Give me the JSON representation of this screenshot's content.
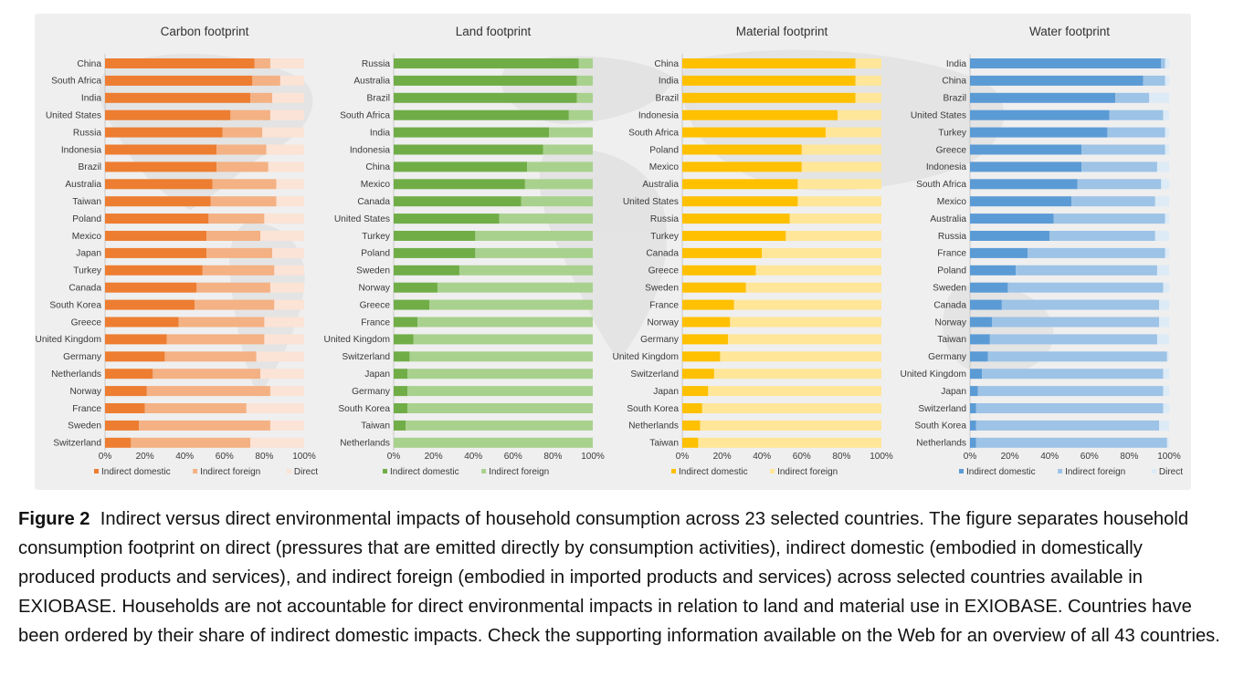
{
  "caption": {
    "label": "Figure 2",
    "text": "Indirect versus direct environmental impacts of household consumption across 23 selected countries. The figure separates household consumption footprint on direct (pressures that are emitted directly by consumption activities), indirect domestic (embodied in domestically produced products and services), and indirect foreign (embodied in imported products and services) across selected countries available in EXIOBASE. Households are not accountable for direct environmental impacts in relation to land and material use in EXIOBASE. Countries have been ordered by their share of indirect domestic impacts. Check the supporting information available on the Web for an overview of all 43 countries."
  },
  "chart_data": [
    {
      "type": "bar",
      "orientation": "horizontal",
      "stacked": "percent",
      "title": "Carbon footprint",
      "categories": [
        "China",
        "South Africa",
        "India",
        "United States",
        "Russia",
        "Indonesia",
        "Brazil",
        "Australia",
        "Taiwan",
        "Poland",
        "Mexico",
        "Japan",
        "Turkey",
        "Canada",
        "South Korea",
        "Greece",
        "United Kingdom",
        "Germany",
        "Netherlands",
        "Norway",
        "France",
        "Sweden",
        "Switzerland"
      ],
      "series": [
        {
          "name": "Indirect domestic",
          "color": "#ed7d31",
          "values": [
            75,
            74,
            73,
            63,
            59,
            56,
            56,
            54,
            53,
            52,
            51,
            51,
            49,
            46,
            45,
            37,
            31,
            30,
            24,
            21,
            20,
            17,
            13
          ]
        },
        {
          "name": "Indirect foreign",
          "color": "#f4b183",
          "values": [
            8,
            14,
            11,
            20,
            20,
            25,
            26,
            32,
            33,
            28,
            27,
            33,
            36,
            37,
            40,
            43,
            49,
            46,
            54,
            62,
            51,
            66,
            60
          ]
        },
        {
          "name": "Direct",
          "color": "#fbe3d6",
          "values": [
            17,
            12,
            16,
            17,
            21,
            19,
            18,
            14,
            14,
            20,
            22,
            16,
            15,
            17,
            15,
            20,
            20,
            24,
            22,
            17,
            29,
            17,
            27
          ]
        }
      ],
      "xlim": [
        0,
        100
      ],
      "xticks": [
        "0%",
        "20%",
        "40%",
        "60%",
        "80%",
        "100%"
      ],
      "legend": "bottom"
    },
    {
      "type": "bar",
      "orientation": "horizontal",
      "stacked": "percent",
      "title": "Land footprint",
      "categories": [
        "Russia",
        "Australia",
        "Brazil",
        "South Africa",
        "India",
        "Indonesia",
        "China",
        "Mexico",
        "Canada",
        "United States",
        "Turkey",
        "Poland",
        "Sweden",
        "Norway",
        "Greece",
        "France",
        "United Kingdom",
        "Switzerland",
        "Japan",
        "Germany",
        "South Korea",
        "Taiwan",
        "Netherlands"
      ],
      "series": [
        {
          "name": "Indirect domestic",
          "color": "#70ad47",
          "values": [
            93,
            92,
            92,
            88,
            78,
            75,
            67,
            66,
            64,
            53,
            41,
            41,
            33,
            22,
            18,
            12,
            10,
            8,
            7,
            7,
            7,
            6,
            0
          ]
        },
        {
          "name": "Indirect foreign",
          "color": "#a9d18e",
          "values": [
            7,
            8,
            8,
            12,
            22,
            25,
            33,
            34,
            36,
            47,
            59,
            59,
            67,
            78,
            82,
            88,
            90,
            92,
            93,
            93,
            93,
            94,
            100
          ]
        }
      ],
      "xlim": [
        0,
        100
      ],
      "xticks": [
        "0%",
        "20%",
        "40%",
        "60%",
        "80%",
        "100%"
      ],
      "legend": "bottom"
    },
    {
      "type": "bar",
      "orientation": "horizontal",
      "stacked": "percent",
      "title": "Material footprint",
      "categories": [
        "China",
        "India",
        "Brazil",
        "Indonesia",
        "South Africa",
        "Poland",
        "Mexico",
        "Australia",
        "United States",
        "Russia",
        "Turkey",
        "Canada",
        "Greece",
        "Sweden",
        "France",
        "Norway",
        "Germany",
        "United Kingdom",
        "Switzerland",
        "Japan",
        "South Korea",
        "Netherlands",
        "Taiwan"
      ],
      "series": [
        {
          "name": "Indirect domestic",
          "color": "#ffc000",
          "values": [
            87,
            87,
            87,
            78,
            72,
            60,
            60,
            58,
            58,
            54,
            52,
            40,
            37,
            32,
            26,
            24,
            23,
            19,
            16,
            13,
            10,
            9,
            8
          ]
        },
        {
          "name": "Indirect foreign",
          "color": "#ffe699",
          "values": [
            13,
            13,
            13,
            22,
            28,
            40,
            40,
            42,
            42,
            46,
            48,
            60,
            63,
            68,
            74,
            76,
            77,
            81,
            84,
            87,
            90,
            91,
            92
          ]
        }
      ],
      "xlim": [
        0,
        100
      ],
      "xticks": [
        "0%",
        "20%",
        "40%",
        "60%",
        "80%",
        "100%"
      ],
      "legend": "bottom"
    },
    {
      "type": "bar",
      "orientation": "horizontal",
      "stacked": "percent",
      "title": "Water footprint",
      "categories": [
        "India",
        "China",
        "Brazil",
        "United States",
        "Turkey",
        "Greece",
        "Indonesia",
        "South Africa",
        "Mexico",
        "Australia",
        "Russia",
        "France",
        "Poland",
        "Sweden",
        "Canada",
        "Norway",
        "Taiwan",
        "Germany",
        "United Kingdom",
        "Japan",
        "Switzerland",
        "South Korea",
        "Netherlands"
      ],
      "series": [
        {
          "name": "Indirect domestic",
          "color": "#5b9bd5",
          "values": [
            96,
            87,
            73,
            70,
            69,
            56,
            56,
            54,
            51,
            42,
            40,
            29,
            23,
            19,
            16,
            11,
            10,
            9,
            6,
            4,
            3,
            3,
            3
          ]
        },
        {
          "name": "Indirect foreign",
          "color": "#9dc3e6",
          "values": [
            2,
            11,
            17,
            27,
            29,
            42,
            38,
            42,
            42,
            56,
            53,
            69,
            71,
            78,
            79,
            84,
            84,
            90,
            91,
            93,
            94,
            92,
            96
          ]
        },
        {
          "name": "Direct",
          "color": "#ddebf7",
          "values": [
            2,
            2,
            10,
            3,
            2,
            2,
            6,
            4,
            7,
            2,
            7,
            2,
            6,
            3,
            5,
            5,
            6,
            1,
            3,
            3,
            3,
            5,
            1
          ]
        }
      ],
      "xlim": [
        0,
        100
      ],
      "xticks": [
        "0%",
        "20%",
        "40%",
        "60%",
        "80%",
        "100%"
      ],
      "legend": "bottom"
    }
  ]
}
